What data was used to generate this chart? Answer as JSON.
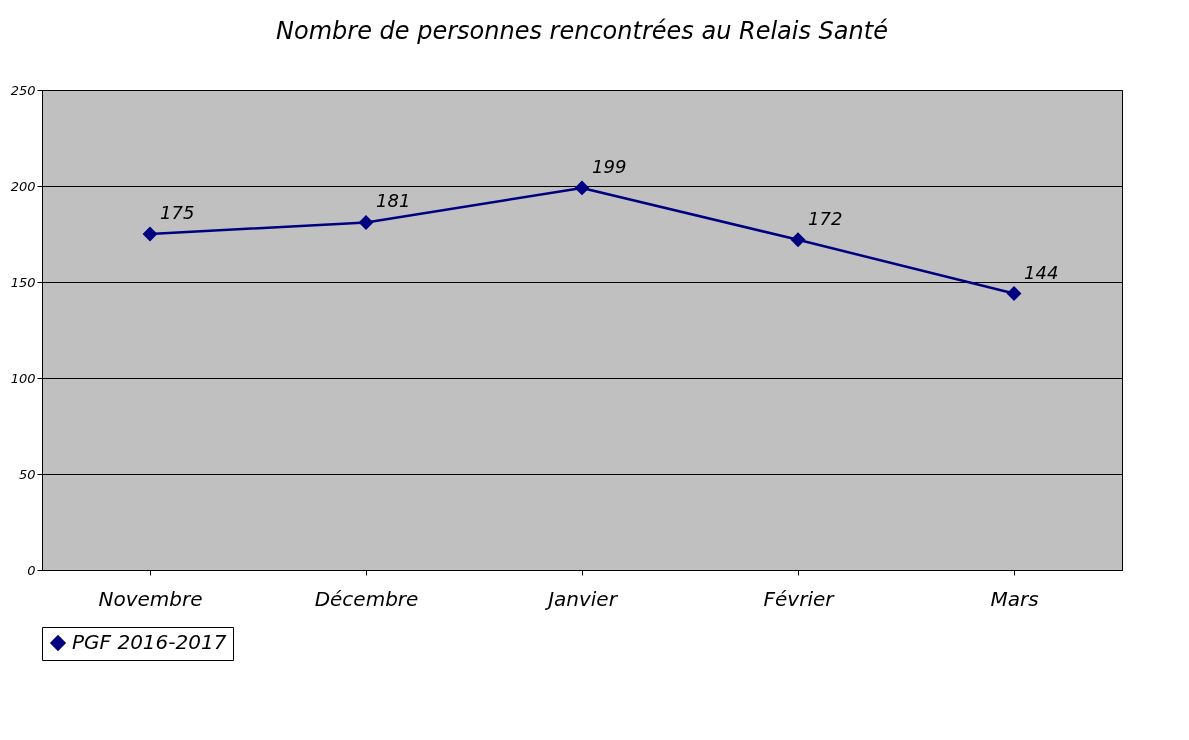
{
  "chart_data": {
    "type": "line",
    "title": "Nombre de personnes rencontrées au Relais Santé",
    "categories": [
      "Novembre",
      "Décembre",
      "Janvier",
      "Février",
      "Mars"
    ],
    "series": [
      {
        "name": "PGF 2016-2017",
        "color": "#000080",
        "values": [
          175,
          181,
          199,
          172,
          144
        ]
      }
    ],
    "ylim": [
      0,
      250
    ],
    "yticks": [
      0,
      50,
      100,
      150,
      200,
      250
    ],
    "grid": "y",
    "legend": "bottom",
    "marker": "diamond",
    "line_style": "solid",
    "data_labels": true
  }
}
